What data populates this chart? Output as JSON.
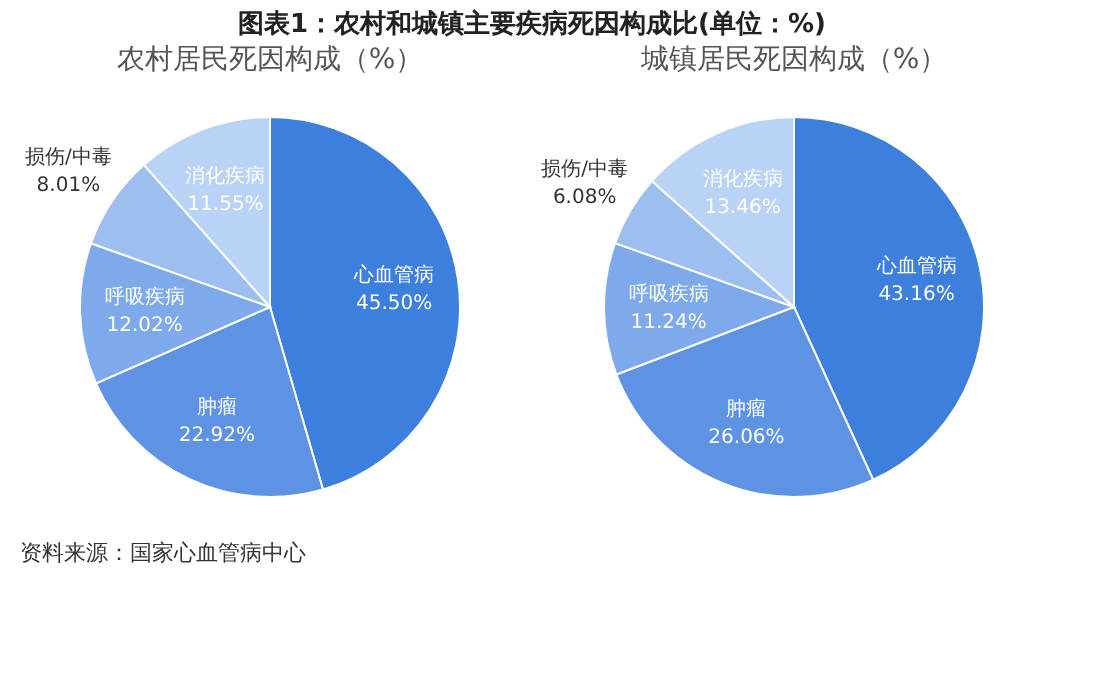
{
  "chart_data": [
    {
      "type": "pie",
      "title": "图表1：农村和城镇主要疾病死因构成比(单位：%)",
      "subtitle": "农村居民死因构成（%）",
      "categories": [
        "心血管病",
        "肿瘤",
        "呼吸疾病",
        "损伤/中毒",
        "消化疾病"
      ],
      "values": [
        45.5,
        22.92,
        12.02,
        8.01,
        11.55
      ],
      "value_labels": [
        "45.50%",
        "22.92%",
        "12.02%",
        "8.01%",
        "11.55%"
      ],
      "colors": [
        "#3d7fdc",
        "#5e93e4",
        "#7ea9eb",
        "#9dbff0",
        "#b9d3f6"
      ],
      "legend": false,
      "annotations": [
        "资料来源：国家心血管病中心"
      ]
    },
    {
      "type": "pie",
      "title": "城镇居民死因构成（%）",
      "categories": [
        "心血管病",
        "肿瘤",
        "呼吸疾病",
        "损伤/中毒",
        "消化疾病"
      ],
      "values": [
        43.16,
        26.06,
        11.24,
        6.08,
        13.46
      ],
      "value_labels": [
        "43.16%",
        "26.06%",
        "11.24%",
        "6.08%",
        "13.46%"
      ],
      "colors": [
        "#3d7fdc",
        "#5e93e4",
        "#7ea9eb",
        "#9dbff0",
        "#b9d3f6"
      ],
      "legend": false
    }
  ]
}
